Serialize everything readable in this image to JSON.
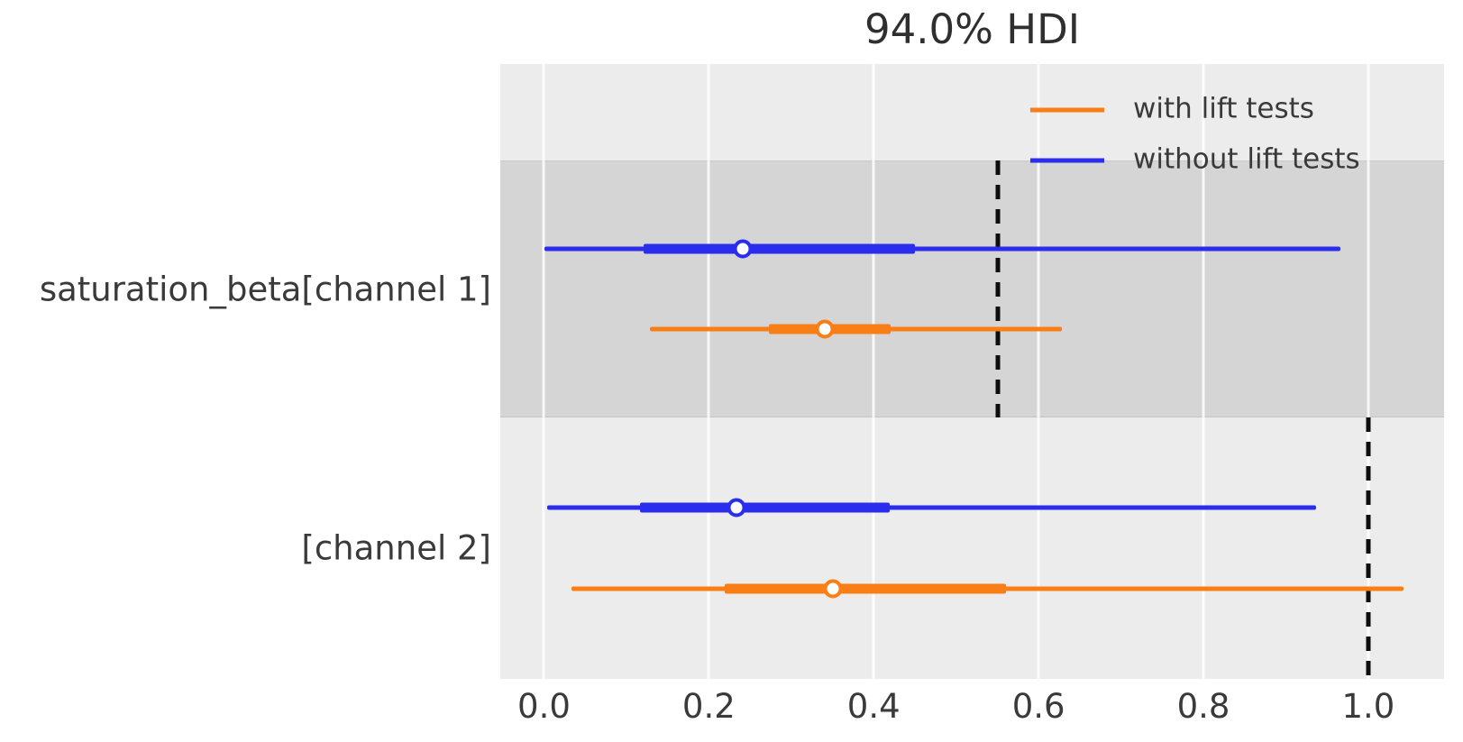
{
  "figure": {
    "title": "94.0% HDI"
  },
  "colors": {
    "with_lift_tests": "#f97e15",
    "without_lift_tests": "#2a2eec",
    "plot_background": "#ececec",
    "shaded_band": "#d5d5d5",
    "gridline": "#ffffff",
    "reference_line": "#0d0d0d",
    "text": "#3a3a3a",
    "marker_fill": "#fcfcfc"
  },
  "legend": {
    "items": [
      {
        "label": "with lift tests",
        "color": "#f97e15"
      },
      {
        "label": "without lift tests",
        "color": "#2a2eec"
      }
    ]
  },
  "chart_data": {
    "type": "forest",
    "title": "94.0% HDI",
    "hdi_probability": "94.0%",
    "xlim": [
      -0.053,
      1.092
    ],
    "x_ticks": [
      0.0,
      0.2,
      0.4,
      0.6,
      0.8,
      1.0
    ],
    "x_tick_labels": [
      "0.0",
      "0.2",
      "0.4",
      "0.6",
      "0.8",
      "1.0"
    ],
    "grid": true,
    "legend_position": "upper right inside",
    "series_names": [
      "without lift tests",
      "with lift tests"
    ],
    "variables": [
      {
        "label": "saturation_beta[channel 1]",
        "shaded": true,
        "reference_x": 0.551,
        "series": [
          {
            "name": "without lift tests",
            "color": "#2a2eec",
            "hdi_94": [
              0.001,
              0.966
            ],
            "thick_band": [
              0.121,
              0.45
            ],
            "median": 0.241
          },
          {
            "name": "with lift tests",
            "color": "#f97e15",
            "hdi_94": [
              0.129,
              0.628
            ],
            "thick_band": [
              0.273,
              0.42
            ],
            "median": 0.341
          }
        ]
      },
      {
        "label": "[channel 2]",
        "shaded": false,
        "reference_x": 1.0,
        "series": [
          {
            "name": "without lift tests",
            "color": "#2a2eec",
            "hdi_94": [
              0.004,
              0.937
            ],
            "thick_band": [
              0.116,
              0.419
            ],
            "median": 0.233
          },
          {
            "name": "with lift tests",
            "color": "#f97e15",
            "hdi_94": [
              0.033,
              1.043
            ],
            "thick_band": [
              0.219,
              0.56
            ],
            "median": 0.351
          }
        ]
      }
    ]
  }
}
